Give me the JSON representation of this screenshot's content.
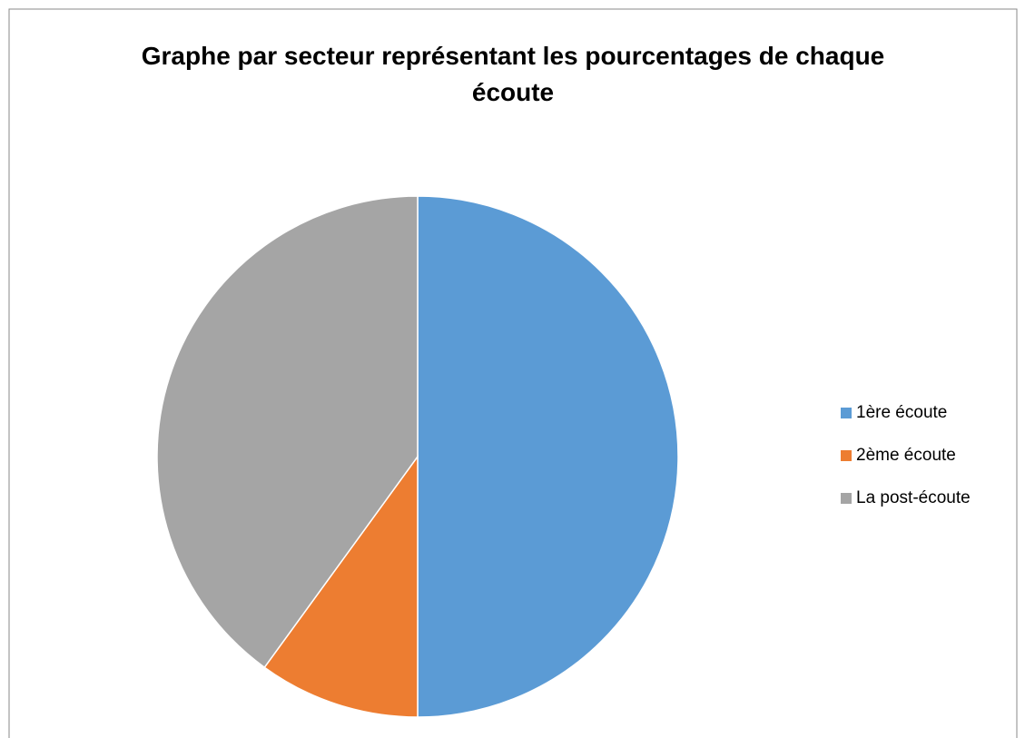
{
  "chart_data": {
    "type": "pie",
    "title": "Graphe par secteur représentant les pourcentages de chaque écoute",
    "categories": [
      "1ère écoute",
      "2ème écoute",
      "La post-écoute"
    ],
    "values": [
      50,
      10,
      40
    ],
    "colors": [
      "#5b9bd5",
      "#ed7d31",
      "#a5a5a5"
    ],
    "legend": "right"
  }
}
